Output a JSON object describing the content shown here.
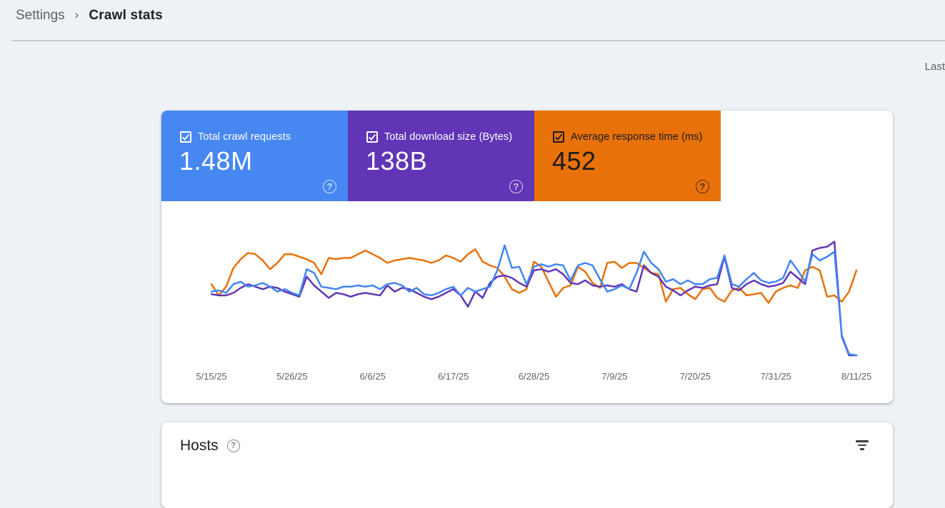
{
  "breadcrumb": {
    "parent": "Settings",
    "separator": "›",
    "current": "Crawl stats"
  },
  "date_range_label": "Last",
  "icons": {
    "help_glyph": "?"
  },
  "metric_cards": [
    {
      "label": "Total crawl requests",
      "value": "1.48M",
      "bg": "#4787F2",
      "fg": "#ffffff",
      "checked": true
    },
    {
      "label": "Total download size (Bytes)",
      "value": "138B",
      "bg": "#6135B5",
      "fg": "#ffffff",
      "checked": true
    },
    {
      "label": "Average response time (ms)",
      "value": "452",
      "bg": "#E8710A",
      "fg": "#1b1b1b",
      "checked": true
    }
  ],
  "hosts": {
    "title": "Hosts"
  },
  "chart_data": {
    "type": "line",
    "title": "Crawl stats over time",
    "x_tick_labels": [
      "5/15/25",
      "5/26/25",
      "6/6/25",
      "6/17/25",
      "6/28/25",
      "7/9/25",
      "7/20/25",
      "7/31/25",
      "8/11/25"
    ],
    "x_unit": "day",
    "points_per_series": 89,
    "y_axis": "unlabeled; values below are percent of plot height (0 = bottom, 100 = top)",
    "legend_position": "none (legend is the colored metric cards)",
    "grid": false,
    "series": [
      {
        "name": "Total crawl requests",
        "color": "#4285F4",
        "values_pct": [
          55,
          56,
          54,
          61,
          63,
          59,
          60,
          62,
          59,
          55,
          57,
          54,
          52,
          73,
          70,
          59,
          58,
          57,
          59,
          59,
          60,
          59,
          60,
          57,
          61,
          62,
          60,
          55,
          58,
          53,
          52,
          54,
          57,
          59,
          52,
          58,
          55,
          57,
          59,
          72,
          92,
          74,
          75,
          61,
          75,
          77,
          75,
          77,
          76,
          64,
          76,
          78,
          76,
          65,
          55,
          57,
          60,
          57,
          70,
          87,
          78,
          73,
          63,
          65,
          61,
          64,
          61,
          61,
          65,
          66,
          84,
          61,
          59,
          65,
          70,
          64,
          62,
          63,
          66,
          80,
          72,
          63,
          85,
          80,
          83,
          87,
          20,
          5,
          4
        ]
      },
      {
        "name": "Total download size (Bytes)",
        "color": "#6135B5",
        "values_pct": [
          53,
          52,
          52,
          54,
          58,
          61,
          59,
          57,
          59,
          58,
          55,
          53,
          51,
          67,
          60,
          55,
          50,
          54,
          53,
          51,
          53,
          54,
          53,
          52,
          60,
          55,
          58,
          57,
          54,
          51,
          49,
          51,
          54,
          57,
          52,
          43,
          55,
          50,
          62,
          67,
          68,
          66,
          62,
          59,
          72,
          73,
          71,
          73,
          69,
          62,
          61,
          64,
          60,
          59,
          60,
          59,
          61,
          57,
          55,
          76,
          70,
          67,
          59,
          56,
          52,
          56,
          59,
          58,
          60,
          61,
          83,
          58,
          56,
          61,
          64,
          61,
          59,
          60,
          62,
          71,
          66,
          61,
          88,
          90,
          91,
          95,
          19,
          4,
          4
        ]
      },
      {
        "name": "Average response time (ms)",
        "color": "#E8710A",
        "values_pct": [
          61,
          52,
          59,
          74,
          81,
          86,
          85,
          80,
          73,
          78,
          85,
          85,
          83,
          81,
          78,
          69,
          82,
          81,
          82,
          82,
          85,
          88,
          85,
          82,
          78,
          80,
          81,
          82,
          81,
          80,
          78,
          80,
          84,
          82,
          79,
          85,
          89,
          79,
          76,
          74,
          67,
          57,
          54,
          57,
          79,
          75,
          63,
          51,
          58,
          60,
          75,
          71,
          62,
          58,
          78,
          79,
          74,
          78,
          78,
          74,
          70,
          69,
          47,
          57,
          58,
          53,
          49,
          57,
          58,
          50,
          47,
          56,
          58,
          52,
          53,
          54,
          46,
          55,
          58,
          60,
          58,
          72,
          75,
          72,
          51,
          52,
          47,
          55,
          72
        ]
      }
    ]
  }
}
